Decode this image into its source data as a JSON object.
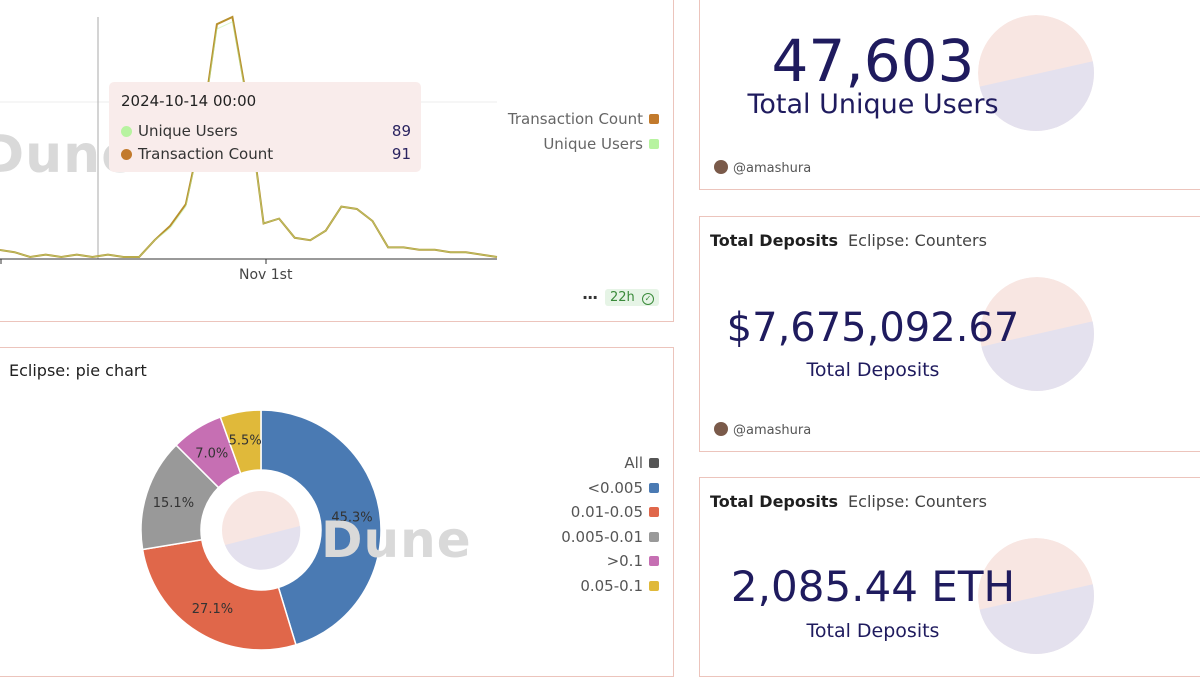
{
  "line_card": {
    "watermark": "Dune",
    "tooltip": {
      "date": "2024-10-14 00:00",
      "rows": [
        {
          "label": "Unique Users",
          "value": "89",
          "color": "#b7f3a0"
        },
        {
          "label": "Transaction Count",
          "value": "91",
          "color": "#c27a2c"
        }
      ]
    },
    "legend": [
      {
        "label": "Transaction Count",
        "color": "#c27a2c"
      },
      {
        "label": "Unique Users",
        "color": "#b7f3a0"
      }
    ],
    "x_tick": "Nov 1st",
    "more_icon": "more-horizontal-icon",
    "refresh_badge": "22h"
  },
  "chart_data": [
    {
      "type": "line",
      "title": "",
      "series": [
        {
          "name": "Transaction Count",
          "color": "#c27a2c",
          "values": [
            3,
            2,
            0,
            1,
            0,
            1,
            0,
            1,
            0,
            0,
            7,
            13,
            22,
            52,
            97,
            100,
            63,
            14,
            16,
            8,
            7,
            11,
            21,
            20,
            15,
            4,
            4,
            3,
            3,
            2,
            2,
            1,
            0
          ]
        },
        {
          "name": "Unique Users",
          "color": "#b7f3a0",
          "values": [
            3,
            2,
            0,
            1,
            0,
            1,
            0,
            1,
            0,
            0,
            7,
            12,
            21,
            51,
            95,
            98,
            62,
            14,
            16,
            8,
            7,
            11,
            21,
            20,
            15,
            4,
            4,
            3,
            3,
            2,
            2,
            1,
            0
          ]
        }
      ],
      "x_tick_labels": [
        "Nov 1st"
      ]
    },
    {
      "type": "pie",
      "title": "Eclipse: pie chart",
      "categories": [
        "<0.005",
        "0.01-0.05",
        "0.005-0.01",
        ">0.1",
        "0.05-0.1"
      ],
      "values": [
        45.3,
        27.1,
        15.1,
        7.0,
        5.5
      ],
      "colors": [
        "#4a7ab3",
        "#e0674a",
        "#999999",
        "#c66fb3",
        "#e0b93a"
      ],
      "labels": [
        "45.3%",
        "27.1%",
        "15.1%",
        "7.0%",
        "5.5%"
      ]
    }
  ],
  "pie_card": {
    "title": "Eclipse: pie chart",
    "watermark": "Dune",
    "legend": [
      {
        "label": "All",
        "color": "#555555"
      },
      {
        "label": "<0.005",
        "color": "#4a7ab3"
      },
      {
        "label": "0.01-0.05",
        "color": "#e0674a"
      },
      {
        "label": "0.005-0.01",
        "color": "#999999"
      },
      {
        "label": ">0.1",
        "color": "#c66fb3"
      },
      {
        "label": "0.05-0.1",
        "color": "#e0b93a"
      }
    ]
  },
  "users_card": {
    "value": "47,603",
    "label": "Total Unique Users",
    "author": "@amashura"
  },
  "deposits_card": {
    "title": "Total Deposits",
    "subtitle": "Eclipse: Counters",
    "value": "$7,675,092.67",
    "label": "Total Deposits",
    "author": "@amashura"
  },
  "eth_card": {
    "title": "Total Deposits",
    "subtitle": "Eclipse: Counters",
    "value": "2,085.44 ETH",
    "label": "Total Deposits"
  }
}
